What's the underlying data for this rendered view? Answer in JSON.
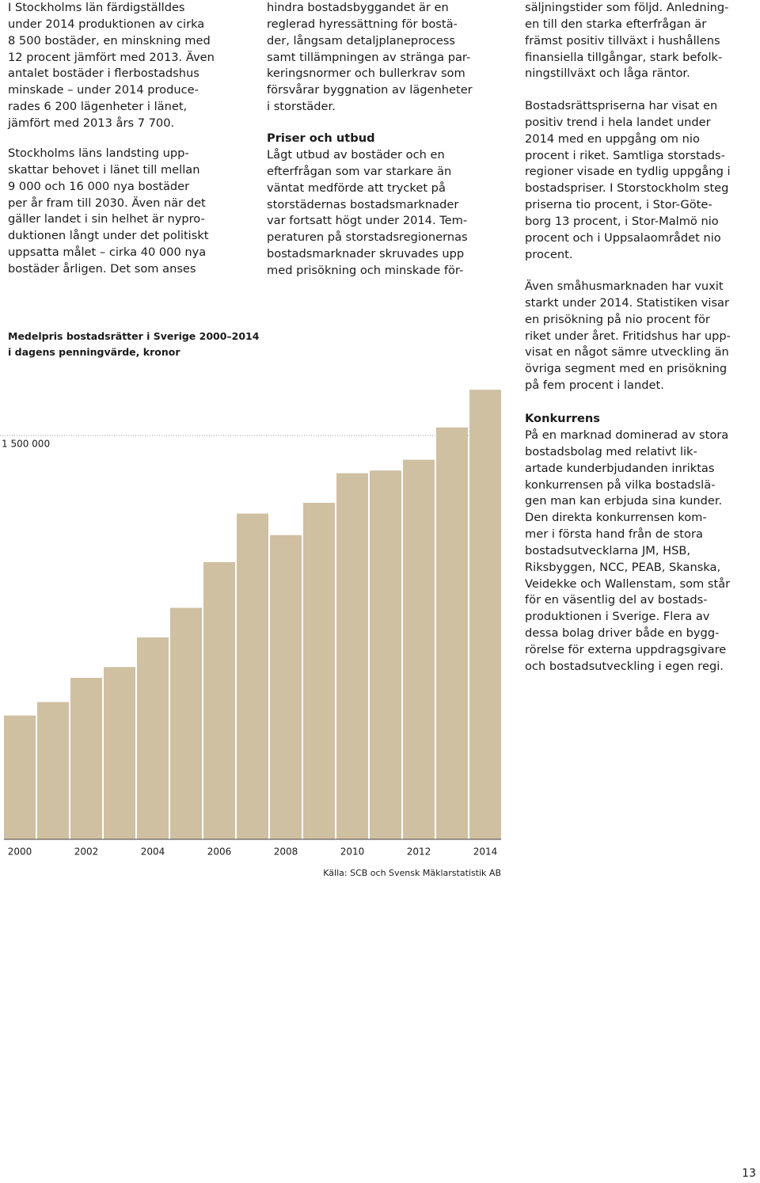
{
  "columns": [
    {
      "blocks": [
        {
          "text": "I Stockholms län färdigställdes\nunder 2014 produktionen av cirka\n8 500 bostäder, en minskning med\n12 procent jämfört med 2013. Även\nantalet bostäder i flerbostadshus\nminskade – under 2014 produce-\nrades 6 200 lägenheter i länet,\njämfört med 2013 års 7 700."
        },
        {
          "text": "Stockholms läns landsting upp-\nskattar behovet i länet till mellan\n9 000 och 16 000 nya bostäder\nper år fram till 2030. Även när det\ngäller landet i sin helhet är nypro-\nduktionen långt under det politiskt\nuppsatta målet – cirka 40 000 nya\nbostäder årligen. Det som anses"
        }
      ]
    },
    {
      "blocks": [
        {
          "text": "hindra bostadsbyggandet är en\nreglerad hyressättning för bostä-\nder, långsam detaljplaneprocess\nsamt tillämpningen av stränga par-\nkeringsnormer och bullerkrav som\nförsvårar byggnation av lägenheter\ni storstäder."
        },
        {
          "heading": "Priser och utbud"
        },
        {
          "text": "Lågt utbud av bostäder och en\nefterfrågan som var starkare än\nväntat medförde att trycket på\nstorstädernas bostadsmarknader\nvar fortsatt högt under 2014. Tem-\nperaturen på storstadsregionernas\nbostadsmarknader skruvades upp\nmed prisökning och minskade för-"
        }
      ]
    },
    {
      "blocks": [
        {
          "text": "säljningstider som följd. Anledning-\nen till den starka efterfrågan är\nfrämst positiv tillväxt i hushållens\nfinansiella tillgångar, stark befolk-\nningstillväxt och låga räntor."
        },
        {
          "text": "Bostadsrättspriserna har visat en\npositiv trend i hela landet under\n2014 med en uppgång om nio\nprocent i riket. Samtliga storstads-\nregioner visade en tydlig uppgång i\nbostadspriser. I Storstockholm steg\npriserna tio procent, i Stor-Göte-\nborg 13 procent, i Stor-Malmö nio\nprocent och i Uppsalaområdet nio\nprocent."
        },
        {
          "text": "Även småhusmarknaden har vuxit\nstarkt under 2014. Statistiken visar\nen prisökning på nio procent för\nriket under året. Fritidshus har upp-\nvisat en något sämre utveckling än\növriga segment med en prisökning\npå fem procent i landet."
        },
        {
          "heading": "Konkurrens"
        },
        {
          "text": "På en marknad dominerad av stora\nbostadsbolag med relativt lik-\nartade kunderbjudanden inriktas\nkonkurrensen på vilka bostadslä-\ngen man kan erbjuda sina kunder.\nDen direkta konkurrensen kom-\nmer i första hand från de stora\nbostadsutvecklarna JM, HSB,\nRiksbyggen, NCC, PEAB, Skanska,\nVeidekke och Wallenstam, som står\nför en väsentlig del av bostads-\nproduktionen i Sverige. Flera av\ndessa bolag driver både en bygg-\nrörelse för externa uppdragsgivare\noch bostadsutveckling i egen regi."
        }
      ]
    }
  ],
  "chart_data": {
    "type": "bar",
    "title": "Medelpris bostadsrätter i Sverige 2000–2014\ni dagens penningvärde, kronor",
    "categories": [
      "2000",
      null,
      "2002",
      null,
      "2004",
      null,
      "2006",
      null,
      "2008",
      null,
      "2010",
      null,
      "2012",
      null,
      "2014"
    ],
    "values": [
      460000,
      510000,
      600000,
      640000,
      750000,
      860000,
      1030000,
      1210000,
      1130000,
      1250000,
      1360000,
      1370000,
      1410000,
      1530000,
      1670000
    ],
    "color": "#cfc0a2",
    "ylim": [
      0,
      1700000
    ],
    "yticks": [
      {
        "value": 1500000,
        "label": "1 500 000"
      }
    ],
    "grid": true,
    "source": "Källa: SCB och Svensk Mäklarstatistik AB"
  },
  "page_number": "13"
}
